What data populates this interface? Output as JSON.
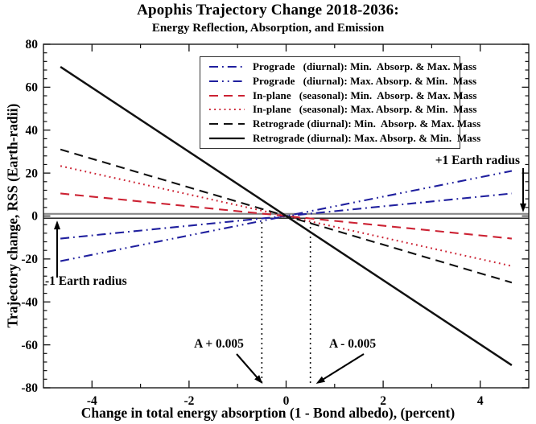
{
  "title": "Apophis Trajectory Change 2018-2036:",
  "subtitle": "Energy Reflection, Absorption, and Emission",
  "chart_data": {
    "type": "line",
    "title": "Apophis Trajectory Change 2018-2036:",
    "subtitle": "Energy Reflection, Absorption, and Emission",
    "xlabel": "Change in total energy absorption (1 - Bond albedo), (percent)",
    "ylabel": "Trajectory change, RSS  (Earth-radii)",
    "xlim": [
      -5,
      5
    ],
    "ylim": [
      -80,
      80
    ],
    "x_major_ticks": [
      -4,
      -2,
      0,
      2,
      4
    ],
    "x_minor_ticks": [
      -3,
      -1,
      1,
      3
    ],
    "y_major_ticks": [
      -80,
      -60,
      -40,
      -20,
      0,
      20,
      40,
      60,
      80
    ],
    "y_minor_step": 4,
    "grid": false,
    "legend_position": "inside-top-center",
    "frame_color": "#1a1a1a",
    "series": [
      {
        "label": "Prograde   (diurnal): Min.  Absorp. & Max. Mass",
        "color": "#1f1f9e",
        "linestyle": "dash-dot",
        "x": [
          -4.65,
          4.65
        ],
        "y": [
          -10.5,
          10.5
        ]
      },
      {
        "label": "Prograde   (diurnal): Max. Absorp. & Min.  Mass",
        "color": "#1f1f9e",
        "linestyle": "dash-dot-dot",
        "x": [
          -4.65,
          4.65
        ],
        "y": [
          -21.0,
          21.0
        ]
      },
      {
        "label": "In-plane   (seasonal): Min.  Absorp. & Max. Mass",
        "color": "#cc2233",
        "linestyle": "dashed",
        "x": [
          -4.65,
          4.65
        ],
        "y": [
          10.5,
          -10.5
        ]
      },
      {
        "label": "In-plane   (seasonal): Max. Absorp. & Min.  Mass",
        "color": "#cc2233",
        "linestyle": "dotted",
        "x": [
          -4.65,
          4.65
        ],
        "y": [
          23.3,
          -23.3
        ]
      },
      {
        "label": "Retrograde (diurnal): Min.  Absorp. & Max. Mass",
        "color": "#111111",
        "linestyle": "dashed",
        "x": [
          -4.65,
          4.65
        ],
        "y": [
          31.0,
          -31.0
        ]
      },
      {
        "label": "Retrograde (diurnal): Max. Absorp. & Min.  Mass",
        "color": "#111111",
        "linestyle": "solid",
        "x": [
          -4.65,
          4.65
        ],
        "y": [
          69.5,
          -69.5
        ]
      }
    ],
    "reference_lines": {
      "horizontal": [
        {
          "y": 1,
          "color": "#888888",
          "width": 2.2
        },
        {
          "y": -1,
          "color": "#111111",
          "width": 1.3
        }
      ],
      "vertical_dotted": [
        {
          "x": -0.5
        },
        {
          "x": 0.5
        }
      ]
    },
    "annotations": [
      {
        "id": "plus-one-earth-radius",
        "text": "+1 Earth radius"
      },
      {
        "id": "minus-one-earth-radius",
        "text": "-1 Earth radius"
      },
      {
        "id": "albedo-plus",
        "text": "A + 0.005"
      },
      {
        "id": "albedo-minus",
        "text": "A - 0.005"
      }
    ]
  }
}
